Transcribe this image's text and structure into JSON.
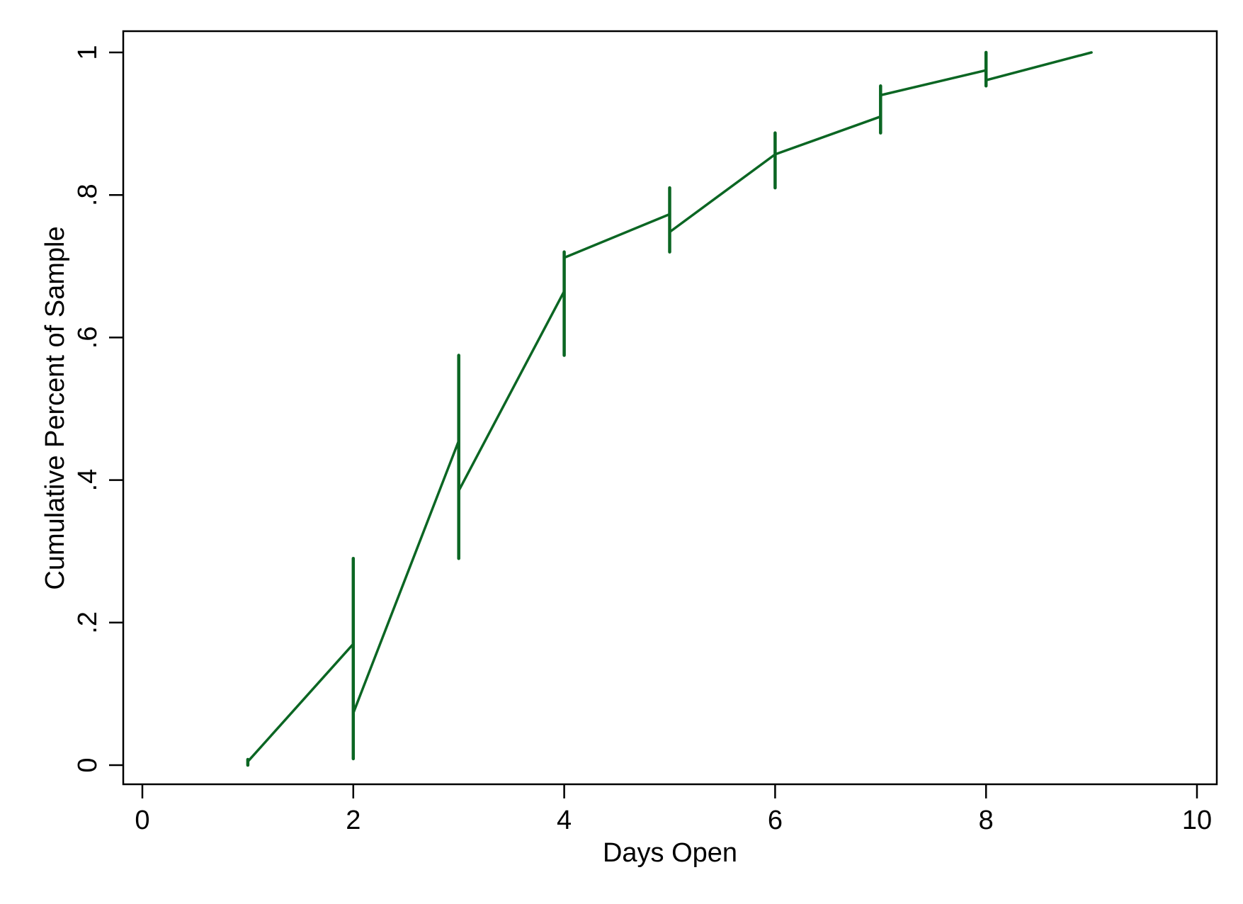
{
  "chart_data": {
    "type": "line",
    "title": "",
    "xlabel": "Days Open",
    "ylabel": "Cumulative Percent of Sample",
    "xlim": [
      0,
      10
    ],
    "ylim": [
      0,
      1
    ],
    "x_ticks": [
      0,
      2,
      4,
      6,
      8,
      10
    ],
    "x_tick_labels": [
      "0",
      "2",
      "4",
      "6",
      "8",
      "10"
    ],
    "y_ticks": [
      0,
      0.2,
      0.4,
      0.6,
      0.8,
      1
    ],
    "y_tick_labels": [
      "0",
      ".2",
      ".4",
      ".6",
      ".8",
      "1"
    ],
    "grid": false,
    "legend": false,
    "line_color": "#0b6623",
    "series": [
      {
        "segments": [
          {
            "x": [
              1,
              2
            ],
            "y": [
              0.005,
              0.17
            ]
          },
          {
            "x": [
              2,
              3
            ],
            "y": [
              0.073,
              0.455
            ]
          },
          {
            "x": [
              3,
              4
            ],
            "y": [
              0.385,
              0.665
            ]
          },
          {
            "x": [
              4,
              5
            ],
            "y": [
              0.712,
              0.773
            ]
          },
          {
            "x": [
              5,
              6
            ],
            "y": [
              0.748,
              0.857
            ]
          },
          {
            "x": [
              6,
              7
            ],
            "y": [
              0.857,
              0.91
            ]
          },
          {
            "x": [
              7,
              8
            ],
            "y": [
              0.94,
              0.975
            ]
          },
          {
            "x": [
              8,
              9
            ],
            "y": [
              0.961,
              1.0
            ]
          }
        ],
        "confidence_intervals": [
          {
            "x": 1,
            "low": 0.0,
            "high": 0.008
          },
          {
            "x": 2,
            "low": 0.009,
            "high": 0.29
          },
          {
            "x": 3,
            "low": 0.29,
            "high": 0.575
          },
          {
            "x": 4,
            "low": 0.575,
            "high": 0.72
          },
          {
            "x": 5,
            "low": 0.72,
            "high": 0.81
          },
          {
            "x": 6,
            "low": 0.81,
            "high": 0.887
          },
          {
            "x": 7,
            "low": 0.887,
            "high": 0.953
          },
          {
            "x": 8,
            "low": 0.953,
            "high": 1.0
          }
        ]
      }
    ]
  }
}
